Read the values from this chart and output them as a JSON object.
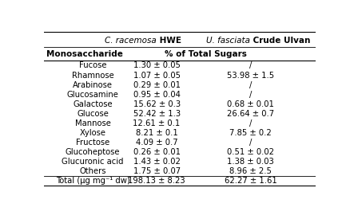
{
  "col1_italic": "C. racemosa",
  "col1_bold": " HWE",
  "col2_italic": "U. fasciata",
  "col2_bold": " Crude Ulvan",
  "subheader_left": "Monosaccharide",
  "subheader_center": "% of Total Sugars",
  "rows": [
    [
      "Fucose",
      "1.30 ± 0.05",
      "/"
    ],
    [
      "Rhamnose",
      "1.07 ± 0.05",
      "53.98 ± 1.5"
    ],
    [
      "Arabinose",
      "0.29 ± 0.01",
      "/"
    ],
    [
      "Glucosamine",
      "0.95 ± 0.04",
      "/"
    ],
    [
      "Galactose",
      "15.62 ± 0.3",
      "0.68 ± 0.01"
    ],
    [
      "Glucose",
      "52.42 ± 1.3",
      "26.64 ± 0.7"
    ],
    [
      "Mannose",
      "12.61 ± 0.1",
      "/"
    ],
    [
      "Xylose",
      "8.21 ± 0.1",
      "7.85 ± 0.2"
    ],
    [
      "Fructose",
      "4.09 ± 0.7",
      "/"
    ],
    [
      "Glucoheptose",
      "0.26 ± 0.01",
      "0.51 ± 0.02"
    ],
    [
      "Glucuronic acid",
      "1.43 ± 0.02",
      "1.38 ± 0.03"
    ],
    [
      "Others",
      "1.75 ± 0.07",
      "8.96 ± 2.5"
    ],
    [
      "Total (µg mg⁻¹ dw)",
      "198.13 ± 8.23",
      "62.27 ± 1.61"
    ]
  ],
  "bg_color": "#ffffff",
  "text_color": "#000000",
  "font_size": 7.2,
  "header_font_size": 7.5
}
